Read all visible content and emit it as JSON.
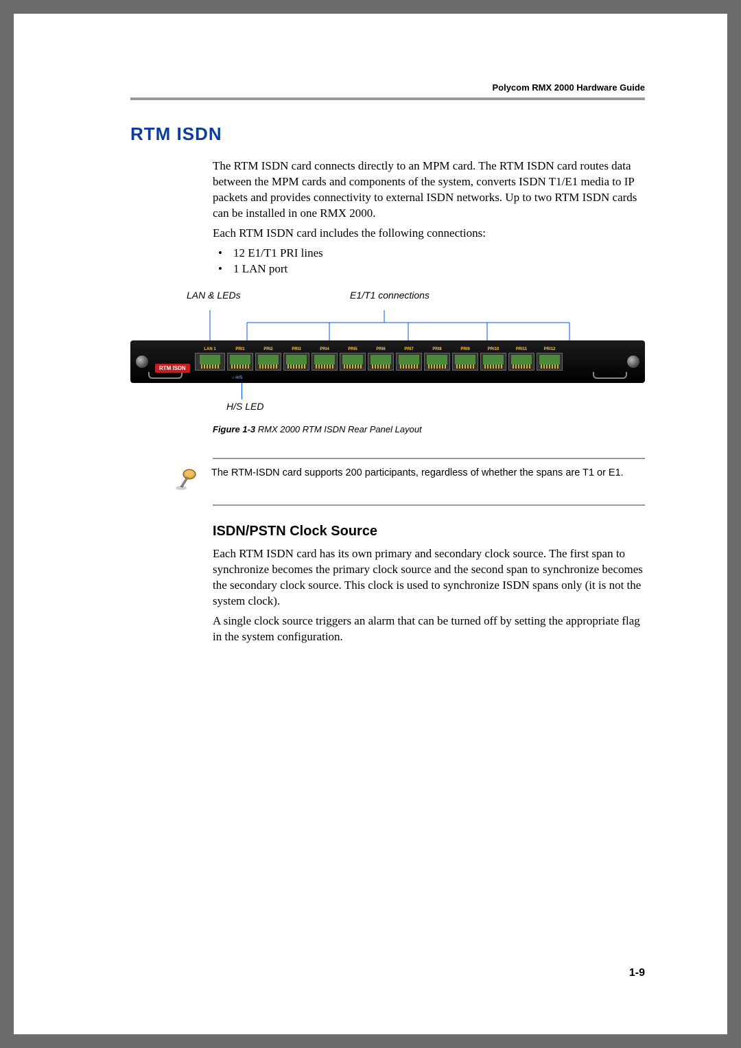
{
  "header": {
    "doc_title": "Polycom RMX 2000 Hardware Guide"
  },
  "colors": {
    "heading_blue": "#0b3e9c",
    "rule_gray": "#999999",
    "callout_line": "#0050ff",
    "panel_bg": "#000000",
    "port_label": "#ffc040",
    "rtm_badge": "#c02020",
    "port_green": "#4a8a3a"
  },
  "section": {
    "title": "RTM ISDN",
    "para1": "The RTM ISDN card connects directly to an MPM card. The RTM ISDN card routes data between the MPM cards and components of the system, converts ISDN T1/E1 media to IP packets and provides connectivity to external ISDN networks. Up to two RTM ISDN cards can be installed in one RMX 2000.",
    "para2": "Each RTM ISDN card includes the following connections:",
    "bullets": [
      "12 E1/T1 PRI lines",
      "1 LAN port"
    ]
  },
  "figure": {
    "callout_left": "LAN & LEDs",
    "callout_right": "E1/T1 connections",
    "callout_bottom": "H/S LED",
    "rtm_label": "RTM ISDN",
    "hs_label": "H/S",
    "port_labels": [
      "LAN 1",
      "PRI1",
      "PRI2",
      "PRI3",
      "PRI4",
      "PRI5",
      "PRI6",
      "PRI7",
      "PRI8",
      "PRI9",
      "PRI10",
      "PRI11",
      "PRI12"
    ],
    "caption_bold": "Figure 1-3",
    "caption_rest": "  RMX 2000 RTM ISDN Rear Panel Layout"
  },
  "note": {
    "text": "The RTM-ISDN card supports 200 participants, regardless of whether the spans are T1 or E1."
  },
  "subsection": {
    "title": "ISDN/PSTN Clock Source",
    "para1": "Each RTM ISDN card has its own primary and secondary clock source. The first span to synchronize becomes the primary clock source and the second span to synchronize becomes the secondary clock source. This clock is used to synchronize ISDN spans only (it is not the system clock).",
    "para2": "A single clock source triggers an alarm that can be turned off by setting the appropriate flag in the system configuration."
  },
  "page_number": "1-9"
}
